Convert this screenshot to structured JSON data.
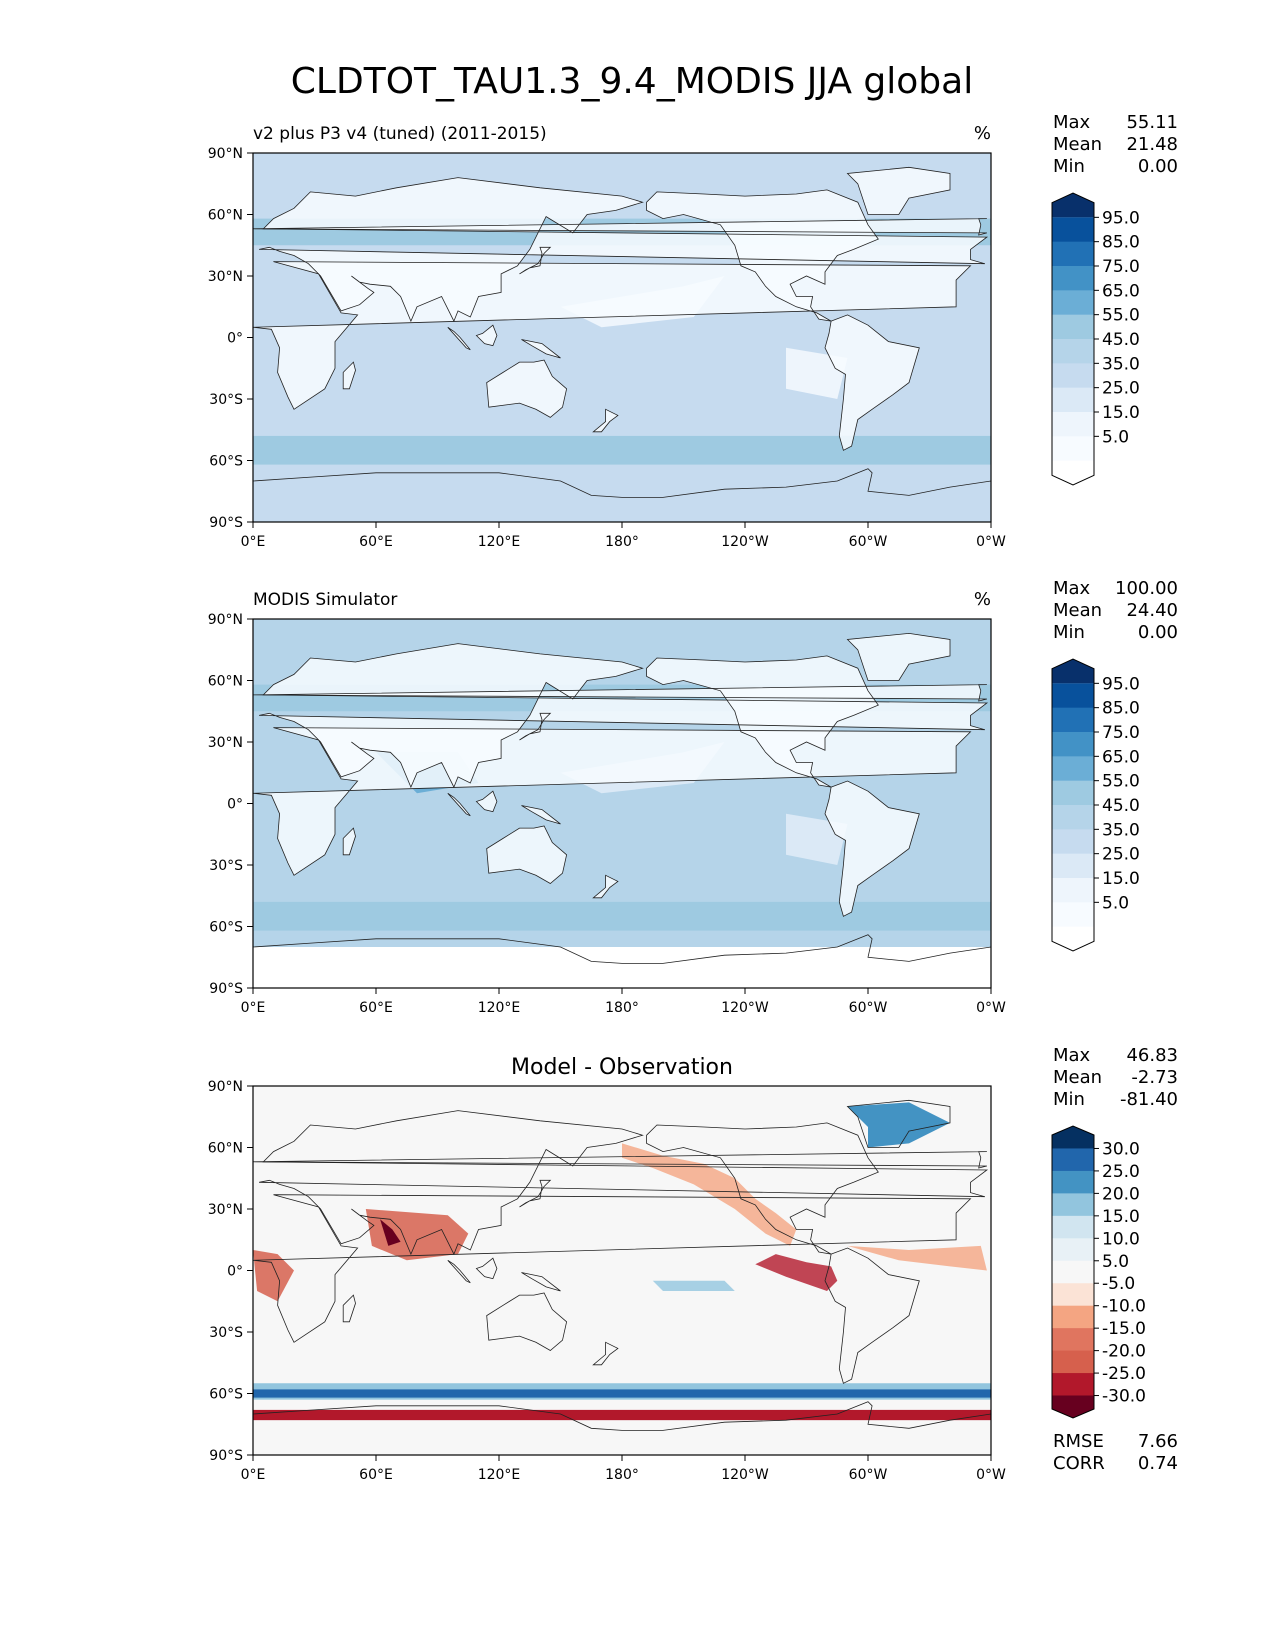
{
  "title": "CLDTOT_TAU1.3_9.4_MODIS JJA global",
  "lat_ticks": [
    "90°N",
    "60°N",
    "30°N",
    "0°",
    "30°S",
    "60°S",
    "90°S"
  ],
  "lon_ticks": [
    "0°E",
    "60°E",
    "120°E",
    "180°",
    "120°W",
    "60°W",
    "0°W"
  ],
  "panels": [
    {
      "id": "test",
      "left_title": "v2 plus P3 v4 (tuned) (2011-2015)",
      "center_title": "",
      "units": "%",
      "stats": [
        {
          "label": "Max",
          "value": "55.11"
        },
        {
          "label": "Mean",
          "value": "21.48"
        },
        {
          "label": "Min",
          "value": "0.00"
        }
      ],
      "colorbar": {
        "labels": [
          "95.0",
          "85.0",
          "75.0",
          "65.0",
          "55.0",
          "45.0",
          "35.0",
          "25.0",
          "15.0",
          "5.0"
        ],
        "colors": [
          "#08306b",
          "#08519c",
          "#2171b5",
          "#4292c6",
          "#6baed6",
          "#9ecae1",
          "#b5d4e9",
          "#c6dbef",
          "#dbe9f6",
          "#eef5fc",
          "#f7fbff",
          "#ffffff"
        ]
      },
      "map_colors": {
        "ocean": "#c6dbef",
        "band": "#9ecae1",
        "light": "#eef5fc",
        "land": "#f7fbff",
        "bright": "#dbe9f6",
        "strong": "#6baed6"
      },
      "extra_stats": []
    },
    {
      "id": "ref",
      "left_title": "MODIS Simulator",
      "center_title": "",
      "units": "%",
      "stats": [
        {
          "label": "Max",
          "value": "100.00"
        },
        {
          "label": "Mean",
          "value": "24.40"
        },
        {
          "label": "Min",
          "value": "0.00"
        }
      ],
      "colorbar": {
        "labels": [
          "95.0",
          "85.0",
          "75.0",
          "65.0",
          "55.0",
          "45.0",
          "35.0",
          "25.0",
          "15.0",
          "5.0"
        ],
        "colors": [
          "#08306b",
          "#08519c",
          "#2171b5",
          "#4292c6",
          "#6baed6",
          "#9ecae1",
          "#b5d4e9",
          "#c6dbef",
          "#dbe9f6",
          "#eef5fc",
          "#f7fbff",
          "#ffffff"
        ]
      },
      "map_colors": {
        "ocean": "#b5d4e9",
        "band": "#9ecae1",
        "light": "#dbe9f6",
        "land": "#f7fbff",
        "bright": "#eef5fc",
        "strong": "#6baed6"
      },
      "extra_stats": []
    },
    {
      "id": "diff",
      "left_title": "",
      "center_title": "Model - Observation",
      "units": "",
      "stats": [
        {
          "label": "Max",
          "value": "46.83"
        },
        {
          "label": "Mean",
          "value": "-2.73"
        },
        {
          "label": "Min",
          "value": "-81.40"
        }
      ],
      "colorbar": {
        "labels": [
          "30.0",
          "25.0",
          "20.0",
          "15.0",
          "10.0",
          "5.0",
          "-5.0",
          "-10.0",
          "-15.0",
          "-20.0",
          "-25.0",
          "-30.0"
        ],
        "colors": [
          "#053061",
          "#2166ac",
          "#4393c3",
          "#92c5de",
          "#d1e5f0",
          "#e8f1f6",
          "#f7f7f7",
          "#fbe3d6",
          "#f4a582",
          "#e0755f",
          "#d6604d",
          "#b2182b",
          "#67001f"
        ]
      },
      "map_colors": {
        "ocean": "#f7f7f7",
        "band": "#2166ac",
        "light": "#fbe3d6",
        "land": "#f7f7f7",
        "bright": "#f4a582",
        "strong": "#b2182b"
      },
      "extra_stats": [
        {
          "label": "RMSE",
          "value": "7.66"
        },
        {
          "label": "CORR",
          "value": "0.74"
        }
      ]
    }
  ]
}
